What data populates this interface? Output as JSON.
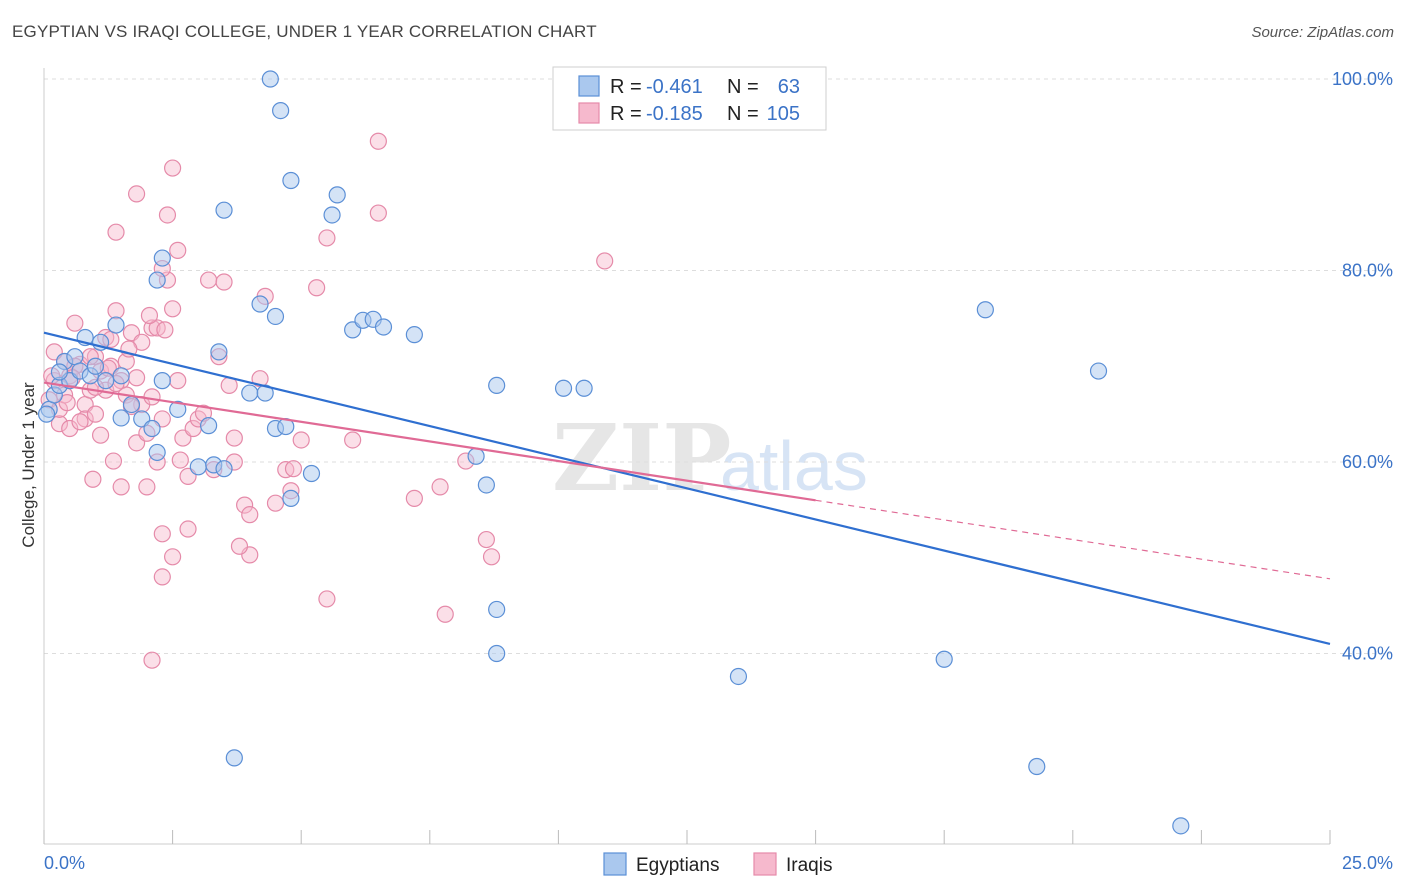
{
  "title": "EGYPTIAN VS IRAQI COLLEGE, UNDER 1 YEAR CORRELATION CHART",
  "source": "Source: ZipAtlas.com",
  "watermark": {
    "zip": "ZIP",
    "atlas": "atlas"
  },
  "legend": {
    "rows": [
      {
        "r_label": "R =",
        "r_value": "-0.461",
        "n_label": "N =",
        "n_value": "63"
      },
      {
        "r_label": "R =",
        "r_value": "-0.185",
        "n_label": "N =",
        "n_value": "105"
      }
    ]
  },
  "bottom_legend": {
    "egyptians": "Egyptians",
    "iraqis": "Iraqis"
  },
  "colors": {
    "egyptians_fill": "#aac8ee",
    "egyptians_stroke": "#5b8fd6",
    "egyptians_line": "#2f6fd0",
    "iraqis_fill": "#f6b9cd",
    "iraqis_stroke": "#e58aa9",
    "iraqis_line": "#e06a95",
    "axis_text": "#3b73c7",
    "grid": "#dddddd"
  },
  "chart_data": {
    "type": "scatter",
    "title": "EGYPTIAN VS IRAQI COLLEGE, UNDER 1 YEAR CORRELATION CHART",
    "xlabel": "",
    "ylabel": "College, Under 1 year",
    "xlim": [
      0,
      25
    ],
    "ylim": [
      20,
      102
    ],
    "x_tick_labels": [
      "0.0%",
      "25.0%"
    ],
    "y_tick_values": [
      40,
      60,
      80,
      100
    ],
    "y_tick_labels": [
      "40.0%",
      "60.0%",
      "80.0%",
      "100.0%"
    ],
    "grid": true,
    "legend_position": "top-center",
    "series": [
      {
        "name": "Egyptians",
        "r": -0.461,
        "n": 63,
        "trend": {
          "x": [
            0,
            25
          ],
          "y": [
            73.5,
            41.0
          ]
        },
        "points": [
          [
            0.1,
            65.5
          ],
          [
            0.2,
            67
          ],
          [
            0.3,
            68
          ],
          [
            0.4,
            70.5
          ],
          [
            0.5,
            68.5
          ],
          [
            0.6,
            71
          ],
          [
            0.7,
            69.5
          ],
          [
            0.8,
            73
          ],
          [
            0.9,
            69
          ],
          [
            1.0,
            70
          ],
          [
            1.1,
            72.5
          ],
          [
            1.2,
            68.5
          ],
          [
            1.4,
            74.3
          ],
          [
            1.5,
            69
          ],
          [
            1.7,
            66
          ],
          [
            1.9,
            64.5
          ],
          [
            2.1,
            63.5
          ],
          [
            2.2,
            61
          ],
          [
            2.3,
            68.5
          ],
          [
            2.6,
            65.5
          ],
          [
            3.2,
            63.8
          ],
          [
            3.4,
            71.5
          ],
          [
            3.0,
            59.5
          ],
          [
            3.3,
            59.7
          ],
          [
            3.5,
            59.3
          ],
          [
            3.5,
            86.3
          ],
          [
            2.3,
            81.3
          ],
          [
            2.2,
            79
          ],
          [
            4.0,
            67.2
          ],
          [
            4.3,
            67.2
          ],
          [
            4.5,
            63.5
          ],
          [
            4.7,
            63.7
          ],
          [
            4.2,
            76.5
          ],
          [
            4.5,
            75.2
          ],
          [
            4.4,
            100
          ],
          [
            4.6,
            96.7
          ],
          [
            4.8,
            89.4
          ],
          [
            5.6,
            85.8
          ],
          [
            5.7,
            87.9
          ],
          [
            6.0,
            73.8
          ],
          [
            6.2,
            74.8
          ],
          [
            6.4,
            74.9
          ],
          [
            6.6,
            74.1
          ],
          [
            7.2,
            73.3
          ],
          [
            5.2,
            58.8
          ],
          [
            4.8,
            56.2
          ],
          [
            8.4,
            60.6
          ],
          [
            8.6,
            57.6
          ],
          [
            8.8,
            68
          ],
          [
            10.1,
            67.7
          ],
          [
            10.5,
            67.7
          ],
          [
            8.8,
            44.6
          ],
          [
            8.8,
            40
          ],
          [
            13.5,
            37.6
          ],
          [
            17.5,
            39.4
          ],
          [
            18.3,
            75.9
          ],
          [
            20.5,
            69.5
          ],
          [
            19.3,
            28.2
          ],
          [
            22.1,
            22
          ],
          [
            3.7,
            29.1
          ],
          [
            0.05,
            65
          ],
          [
            0.3,
            69.4
          ],
          [
            1.5,
            64.6
          ]
        ]
      },
      {
        "name": "Iraqis",
        "r": -0.185,
        "n": 105,
        "trend": {
          "x": [
            0,
            15.0
          ],
          "y": [
            68.3,
            56.0
          ]
        },
        "trend_dashed": {
          "x": [
            15.0,
            25
          ],
          "y": [
            56.0,
            47.8
          ]
        },
        "points": [
          [
            0.1,
            66.5
          ],
          [
            0.2,
            68.5
          ],
          [
            0.3,
            64
          ],
          [
            0.4,
            70.5
          ],
          [
            0.5,
            69
          ],
          [
            0.6,
            74.5
          ],
          [
            0.7,
            70.2
          ],
          [
            0.8,
            66
          ],
          [
            0.9,
            67.5
          ],
          [
            1.0,
            71
          ],
          [
            1.1,
            69.5
          ],
          [
            1.2,
            73
          ],
          [
            1.3,
            70
          ],
          [
            1.4,
            75.8
          ],
          [
            1.5,
            68.5
          ],
          [
            1.6,
            70.5
          ],
          [
            1.7,
            73.5
          ],
          [
            1.8,
            62
          ],
          [
            1.9,
            66
          ],
          [
            2.0,
            63
          ],
          [
            2.1,
            74
          ],
          [
            2.2,
            60
          ],
          [
            2.3,
            64.5
          ],
          [
            2.4,
            79
          ],
          [
            2.5,
            76
          ],
          [
            2.6,
            68.5
          ],
          [
            2.7,
            62.5
          ],
          [
            2.8,
            58.5
          ],
          [
            1.8,
            88
          ],
          [
            1.4,
            84
          ],
          [
            2.4,
            85.8
          ],
          [
            2.5,
            90.7
          ],
          [
            2.6,
            82.1
          ],
          [
            2.3,
            80.2
          ],
          [
            3.2,
            79
          ],
          [
            3.5,
            78.8
          ],
          [
            3.4,
            71
          ],
          [
            3.6,
            68
          ],
          [
            3.7,
            60
          ],
          [
            3.9,
            55.5
          ],
          [
            4.0,
            50.3
          ],
          [
            3.8,
            51.2
          ],
          [
            4.2,
            68.7
          ],
          [
            4.3,
            77.3
          ],
          [
            4.7,
            59.2
          ],
          [
            4.8,
            57
          ],
          [
            5.0,
            62.3
          ],
          [
            5.3,
            78.2
          ],
          [
            5.5,
            83.4
          ],
          [
            6.5,
            86
          ],
          [
            6.5,
            93.5
          ],
          [
            6.0,
            62.3
          ],
          [
            7.2,
            56.2
          ],
          [
            7.7,
            57.4
          ],
          [
            8.2,
            60.1
          ],
          [
            8.6,
            51.9
          ],
          [
            8.7,
            50.1
          ],
          [
            10.9,
            81
          ],
          [
            1.5,
            57.4
          ],
          [
            2.0,
            57.4
          ],
          [
            2.3,
            52.5
          ],
          [
            2.5,
            50.1
          ],
          [
            2.8,
            53
          ],
          [
            2.3,
            48
          ],
          [
            2.1,
            39.3
          ],
          [
            5.5,
            45.7
          ],
          [
            7.8,
            44.1
          ],
          [
            4.0,
            54.5
          ],
          [
            0.3,
            65.5
          ],
          [
            0.5,
            63.5
          ],
          [
            0.8,
            64.5
          ],
          [
            1.0,
            65
          ],
          [
            1.2,
            67.5
          ],
          [
            1.6,
            67
          ],
          [
            1.9,
            72.5
          ],
          [
            2.2,
            74
          ],
          [
            0.4,
            67
          ],
          [
            0.6,
            70
          ],
          [
            1.1,
            62.8
          ],
          [
            1.3,
            72.8
          ],
          [
            1.7,
            65.8
          ],
          [
            2.9,
            63.5
          ],
          [
            3.0,
            64.5
          ],
          [
            3.3,
            59.2
          ],
          [
            0.2,
            71.5
          ],
          [
            0.9,
            71
          ],
          [
            1.0,
            67.8
          ],
          [
            1.4,
            68.2
          ],
          [
            1.8,
            68.8
          ],
          [
            2.1,
            66.8
          ],
          [
            0.7,
            64.2
          ],
          [
            0.15,
            69
          ],
          [
            0.45,
            66.2
          ],
          [
            0.55,
            68.8
          ],
          [
            1.25,
            69.8
          ],
          [
            1.65,
            71.8
          ],
          [
            2.05,
            75.3
          ],
          [
            2.35,
            73.8
          ],
          [
            3.1,
            65.1
          ],
          [
            4.5,
            55.7
          ],
          [
            3.7,
            62.5
          ],
          [
            2.65,
            60.2
          ],
          [
            0.95,
            58.2
          ],
          [
            1.35,
            60.1
          ],
          [
            4.85,
            59.3
          ]
        ]
      }
    ]
  }
}
